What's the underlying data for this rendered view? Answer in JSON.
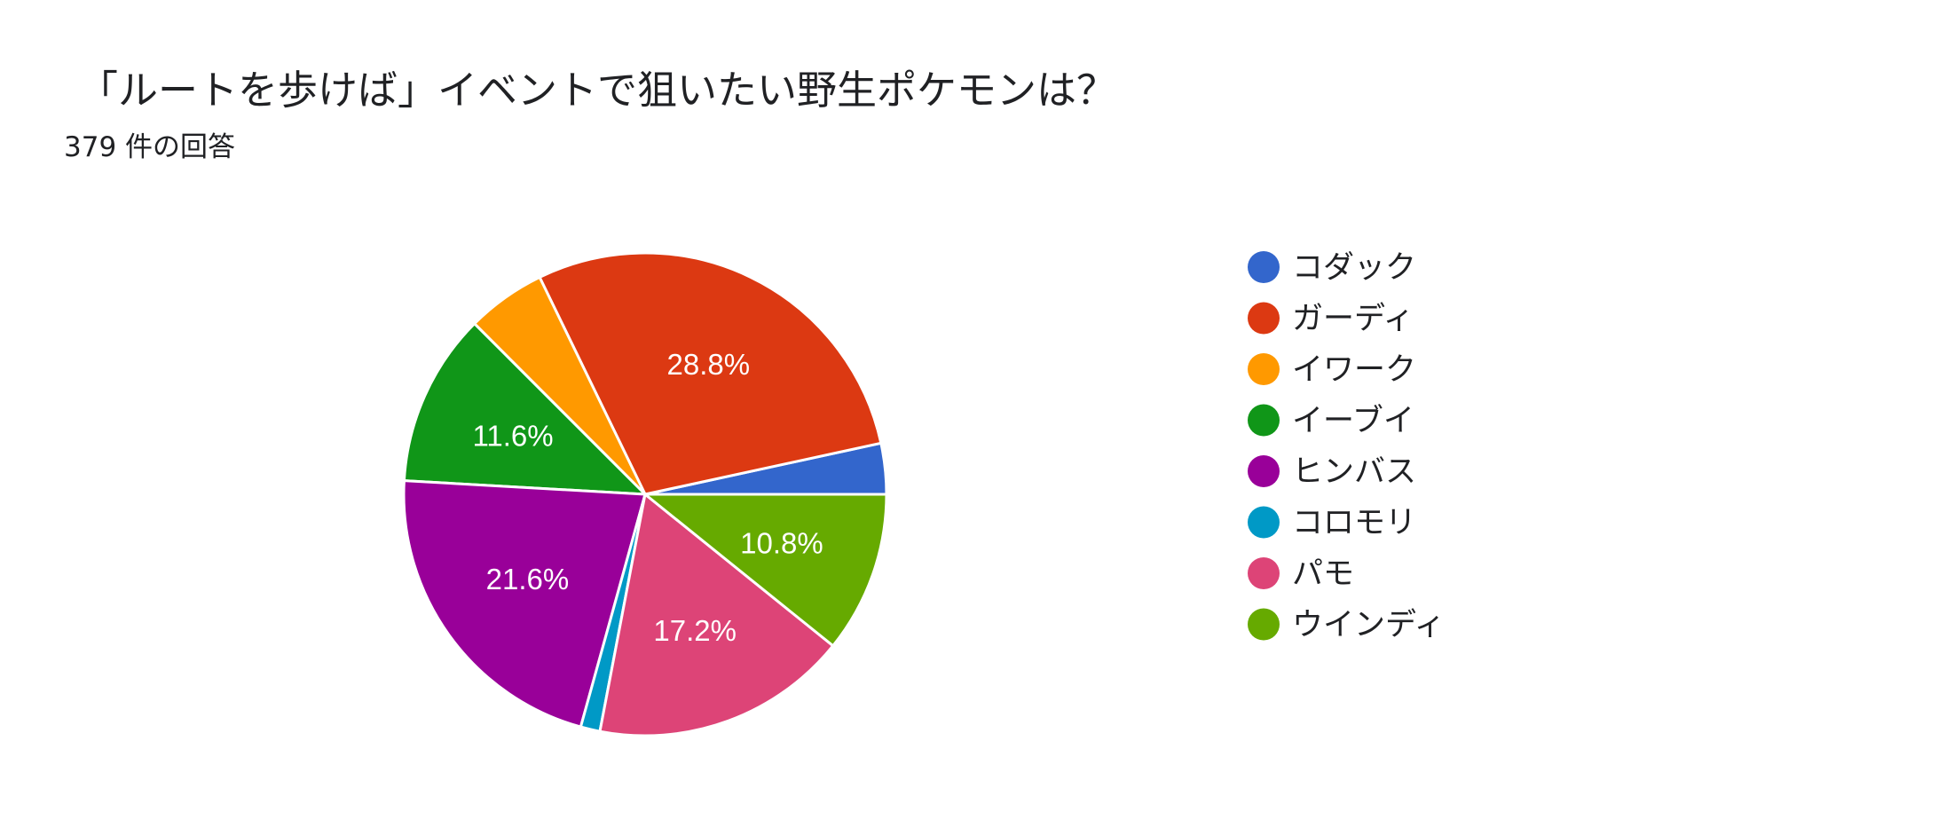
{
  "question": {
    "title": "「ルートを歩けば」イベントで狙いたい野生ポケモンは？",
    "response_count": "379 件の回答"
  },
  "chart_data": {
    "type": "pie",
    "categories": [
      "コダック",
      "ガーディ",
      "イワーク",
      "イーブイ",
      "ヒンバス",
      "コロモリ",
      "パモ",
      "ウインディ"
    ],
    "values": [
      3.4,
      28.8,
      5.3,
      11.6,
      21.6,
      1.3,
      17.2,
      10.8
    ],
    "unit": "%",
    "data_labels": [
      "",
      "28.8%",
      "",
      "11.6%",
      "21.6%",
      "",
      "17.2%",
      "10.8%"
    ],
    "colors": [
      "#3366cc",
      "#dc3912",
      "#ff9900",
      "#109618",
      "#990099",
      "#0099c6",
      "#dd4477",
      "#66aa00"
    ],
    "legend_position": "right",
    "start_angle": "3 o'clock, counterclockwise"
  }
}
